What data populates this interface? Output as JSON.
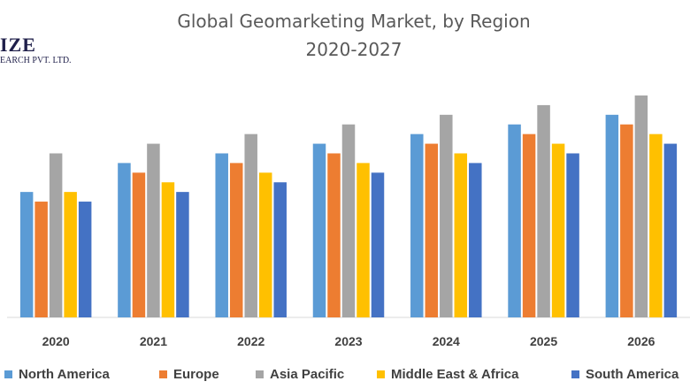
{
  "title": "Global Geomarketing Market, by Region",
  "subtitle": "2020-2027",
  "logo": {
    "line1": "IZE",
    "line2": "EARCH PVT. LTD."
  },
  "colors": {
    "north_america": "#5B9BD5",
    "europe": "#ED7D31",
    "asia_pacific": "#A5A5A5",
    "middle_east_africa": "#FFC000",
    "south_america": "#4472C4"
  },
  "chart_data": {
    "type": "bar",
    "title": "Global Geomarketing Market, by Region",
    "subtitle": "2020-2027",
    "xlabel": "",
    "ylabel": "",
    "ylim": [
      0,
      23
    ],
    "grid": false,
    "legend_position": "bottom",
    "categories": [
      "2020",
      "2021",
      "2022",
      "2023",
      "2024",
      "2025",
      "2026"
    ],
    "series": [
      {
        "name": "North America",
        "color": "#5B9BD5",
        "values": [
          13,
          16,
          17,
          18,
          19,
          20,
          21
        ]
      },
      {
        "name": "Europe",
        "color": "#ED7D31",
        "values": [
          12,
          15,
          16,
          17,
          18,
          19,
          20
        ]
      },
      {
        "name": "Asia Pacific",
        "color": "#A5A5A5",
        "values": [
          17,
          18,
          19,
          20,
          21,
          22,
          23
        ]
      },
      {
        "name": "Middle East & Africa",
        "color": "#FFC000",
        "values": [
          13,
          14,
          15,
          16,
          17,
          18,
          19
        ]
      },
      {
        "name": "South America",
        "color": "#4472C4",
        "values": [
          12,
          13,
          14,
          15,
          16,
          17,
          18
        ]
      }
    ]
  }
}
